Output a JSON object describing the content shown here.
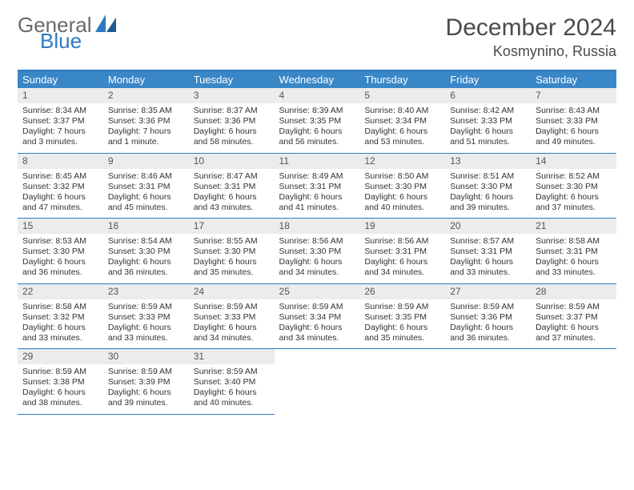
{
  "brand": {
    "general": "General",
    "blue": "Blue"
  },
  "title": "December 2024",
  "location": "Kosmynino, Russia",
  "colors": {
    "header_bg": "#3a87c7",
    "rule": "#2f7abf",
    "daynum_bg": "#ececec",
    "text": "#333333",
    "brand_gray": "#6a6a6a",
    "brand_blue": "#2f7abf"
  },
  "weekdays": [
    "Sunday",
    "Monday",
    "Tuesday",
    "Wednesday",
    "Thursday",
    "Friday",
    "Saturday"
  ],
  "weeks": [
    [
      {
        "n": "1",
        "sr": "Sunrise: 8:34 AM",
        "ss": "Sunset: 3:37 PM",
        "dl": "Daylight: 7 hours and 3 minutes."
      },
      {
        "n": "2",
        "sr": "Sunrise: 8:35 AM",
        "ss": "Sunset: 3:36 PM",
        "dl": "Daylight: 7 hours and 1 minute."
      },
      {
        "n": "3",
        "sr": "Sunrise: 8:37 AM",
        "ss": "Sunset: 3:36 PM",
        "dl": "Daylight: 6 hours and 58 minutes."
      },
      {
        "n": "4",
        "sr": "Sunrise: 8:39 AM",
        "ss": "Sunset: 3:35 PM",
        "dl": "Daylight: 6 hours and 56 minutes."
      },
      {
        "n": "5",
        "sr": "Sunrise: 8:40 AM",
        "ss": "Sunset: 3:34 PM",
        "dl": "Daylight: 6 hours and 53 minutes."
      },
      {
        "n": "6",
        "sr": "Sunrise: 8:42 AM",
        "ss": "Sunset: 3:33 PM",
        "dl": "Daylight: 6 hours and 51 minutes."
      },
      {
        "n": "7",
        "sr": "Sunrise: 8:43 AM",
        "ss": "Sunset: 3:33 PM",
        "dl": "Daylight: 6 hours and 49 minutes."
      }
    ],
    [
      {
        "n": "8",
        "sr": "Sunrise: 8:45 AM",
        "ss": "Sunset: 3:32 PM",
        "dl": "Daylight: 6 hours and 47 minutes."
      },
      {
        "n": "9",
        "sr": "Sunrise: 8:46 AM",
        "ss": "Sunset: 3:31 PM",
        "dl": "Daylight: 6 hours and 45 minutes."
      },
      {
        "n": "10",
        "sr": "Sunrise: 8:47 AM",
        "ss": "Sunset: 3:31 PM",
        "dl": "Daylight: 6 hours and 43 minutes."
      },
      {
        "n": "11",
        "sr": "Sunrise: 8:49 AM",
        "ss": "Sunset: 3:31 PM",
        "dl": "Daylight: 6 hours and 41 minutes."
      },
      {
        "n": "12",
        "sr": "Sunrise: 8:50 AM",
        "ss": "Sunset: 3:30 PM",
        "dl": "Daylight: 6 hours and 40 minutes."
      },
      {
        "n": "13",
        "sr": "Sunrise: 8:51 AM",
        "ss": "Sunset: 3:30 PM",
        "dl": "Daylight: 6 hours and 39 minutes."
      },
      {
        "n": "14",
        "sr": "Sunrise: 8:52 AM",
        "ss": "Sunset: 3:30 PM",
        "dl": "Daylight: 6 hours and 37 minutes."
      }
    ],
    [
      {
        "n": "15",
        "sr": "Sunrise: 8:53 AM",
        "ss": "Sunset: 3:30 PM",
        "dl": "Daylight: 6 hours and 36 minutes."
      },
      {
        "n": "16",
        "sr": "Sunrise: 8:54 AM",
        "ss": "Sunset: 3:30 PM",
        "dl": "Daylight: 6 hours and 36 minutes."
      },
      {
        "n": "17",
        "sr": "Sunrise: 8:55 AM",
        "ss": "Sunset: 3:30 PM",
        "dl": "Daylight: 6 hours and 35 minutes."
      },
      {
        "n": "18",
        "sr": "Sunrise: 8:56 AM",
        "ss": "Sunset: 3:30 PM",
        "dl": "Daylight: 6 hours and 34 minutes."
      },
      {
        "n": "19",
        "sr": "Sunrise: 8:56 AM",
        "ss": "Sunset: 3:31 PM",
        "dl": "Daylight: 6 hours and 34 minutes."
      },
      {
        "n": "20",
        "sr": "Sunrise: 8:57 AM",
        "ss": "Sunset: 3:31 PM",
        "dl": "Daylight: 6 hours and 33 minutes."
      },
      {
        "n": "21",
        "sr": "Sunrise: 8:58 AM",
        "ss": "Sunset: 3:31 PM",
        "dl": "Daylight: 6 hours and 33 minutes."
      }
    ],
    [
      {
        "n": "22",
        "sr": "Sunrise: 8:58 AM",
        "ss": "Sunset: 3:32 PM",
        "dl": "Daylight: 6 hours and 33 minutes."
      },
      {
        "n": "23",
        "sr": "Sunrise: 8:59 AM",
        "ss": "Sunset: 3:33 PM",
        "dl": "Daylight: 6 hours and 33 minutes."
      },
      {
        "n": "24",
        "sr": "Sunrise: 8:59 AM",
        "ss": "Sunset: 3:33 PM",
        "dl": "Daylight: 6 hours and 34 minutes."
      },
      {
        "n": "25",
        "sr": "Sunrise: 8:59 AM",
        "ss": "Sunset: 3:34 PM",
        "dl": "Daylight: 6 hours and 34 minutes."
      },
      {
        "n": "26",
        "sr": "Sunrise: 8:59 AM",
        "ss": "Sunset: 3:35 PM",
        "dl": "Daylight: 6 hours and 35 minutes."
      },
      {
        "n": "27",
        "sr": "Sunrise: 8:59 AM",
        "ss": "Sunset: 3:36 PM",
        "dl": "Daylight: 6 hours and 36 minutes."
      },
      {
        "n": "28",
        "sr": "Sunrise: 8:59 AM",
        "ss": "Sunset: 3:37 PM",
        "dl": "Daylight: 6 hours and 37 minutes."
      }
    ],
    [
      {
        "n": "29",
        "sr": "Sunrise: 8:59 AM",
        "ss": "Sunset: 3:38 PM",
        "dl": "Daylight: 6 hours and 38 minutes."
      },
      {
        "n": "30",
        "sr": "Sunrise: 8:59 AM",
        "ss": "Sunset: 3:39 PM",
        "dl": "Daylight: 6 hours and 39 minutes."
      },
      {
        "n": "31",
        "sr": "Sunrise: 8:59 AM",
        "ss": "Sunset: 3:40 PM",
        "dl": "Daylight: 6 hours and 40 minutes."
      },
      null,
      null,
      null,
      null
    ]
  ]
}
